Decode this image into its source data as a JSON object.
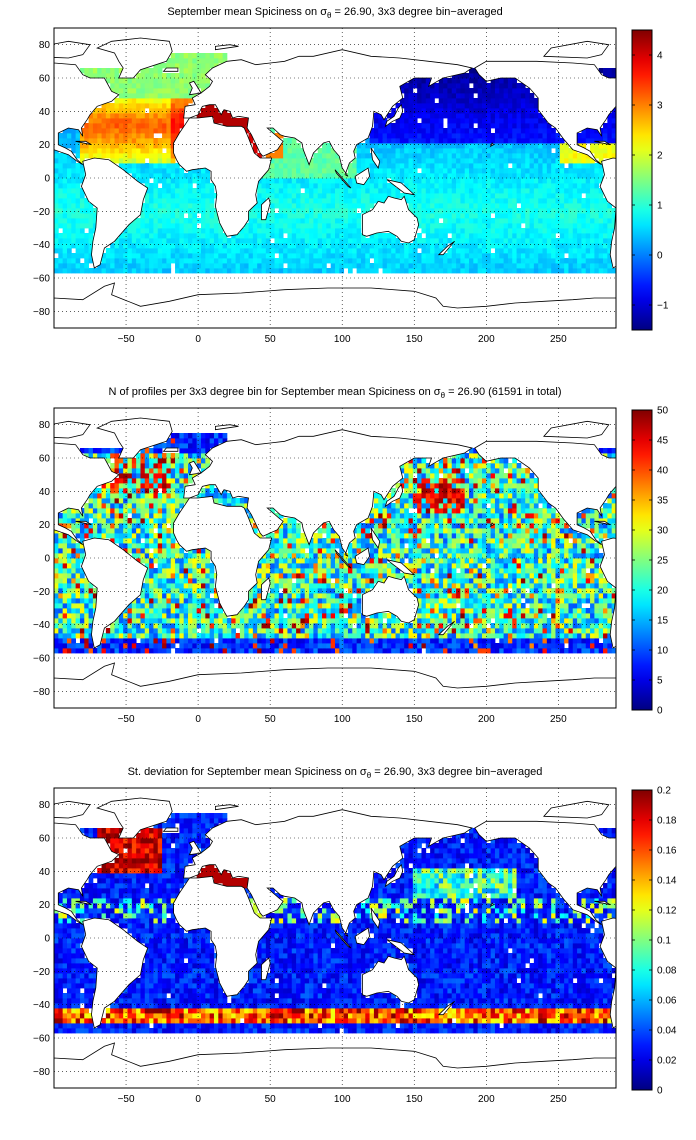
{
  "panels": [
    {
      "id": "mean",
      "title_pre": "September mean Spiciness on ",
      "title_sym": "σ",
      "title_sub": "θ",
      "title_post": " = 26.90, 3x3 degree bin−averaged",
      "x_ticks": [
        "−50",
        "0",
        "50",
        "100",
        "150",
        "200",
        "250"
      ],
      "y_ticks": [
        "80",
        "60",
        "40",
        "20",
        "0",
        "−20",
        "−40",
        "−60",
        "−80"
      ],
      "colorbar_ticks": [
        "4",
        "3",
        "2",
        "1",
        "0",
        "−1"
      ]
    },
    {
      "id": "count",
      "title_pre": "N of profiles per 3x3 degree bin for September mean Spiciness on ",
      "title_sym": "σ",
      "title_sub": "θ",
      "title_post": " = 26.90 (61591 in total)",
      "x_ticks": [
        "−50",
        "0",
        "50",
        "100",
        "150",
        "200",
        "250"
      ],
      "y_ticks": [
        "80",
        "60",
        "40",
        "20",
        "0",
        "−20",
        "−40",
        "−60",
        "−80"
      ],
      "colorbar_ticks": [
        "50",
        "45",
        "40",
        "35",
        "30",
        "25",
        "20",
        "15",
        "10",
        "5",
        "0"
      ]
    },
    {
      "id": "stdev",
      "title_pre": "St. deviation for September mean Spiciness on ",
      "title_sym": "σ",
      "title_sub": "θ",
      "title_post": " = 26.90, 3x3 degree bin−averaged",
      "x_ticks": [
        "−50",
        "0",
        "50",
        "100",
        "150",
        "200",
        "250"
      ],
      "y_ticks": [
        "80",
        "60",
        "40",
        "20",
        "0",
        "−20",
        "−40",
        "−60",
        "−80"
      ],
      "colorbar_ticks": [
        "0.2",
        "0.18",
        "0.16",
        "0.14",
        "0.12",
        "0.1",
        "0.08",
        "0.06",
        "0.04",
        "0.02",
        "0"
      ]
    }
  ],
  "map_extent": {
    "lon": [
      -100,
      290
    ],
    "lat": [
      -90,
      90
    ]
  },
  "colormap": "jet",
  "continents": [
    "north-america",
    "south-america",
    "greenland",
    "eurasia",
    "africa",
    "australia",
    "antarctica"
  ]
}
